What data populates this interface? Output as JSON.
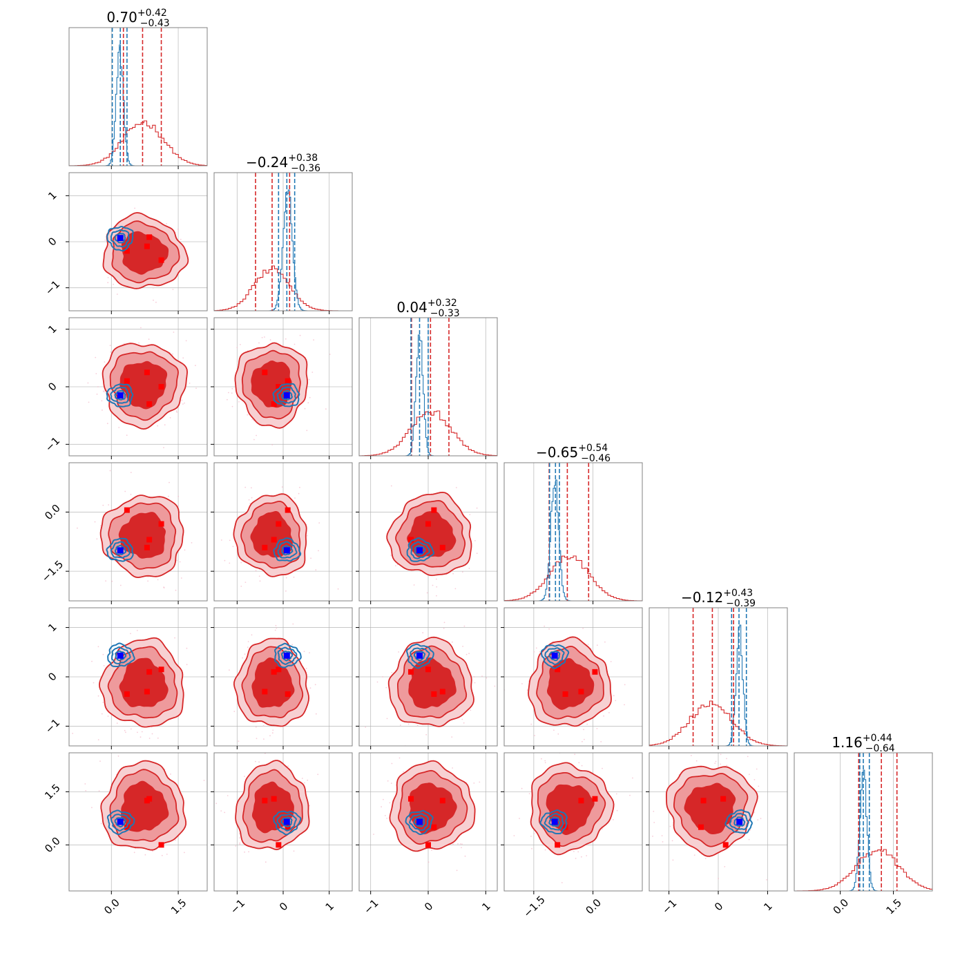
{
  "chart_data": {
    "type": "corner",
    "dimensions": 6,
    "grid": true,
    "colors": {
      "red": "#d62728",
      "blue": "#1f77b4",
      "marker_red": "#ff0000",
      "marker_blue": "#0000ff",
      "scatter": "#f4b6c8"
    },
    "params": [
      {
        "title_main": "0.70",
        "title_sup": "+0.42",
        "title_sub": "−0.43",
        "range": [
          -0.95,
          2.15
        ],
        "ticks": [
          0.0,
          1.5
        ],
        "ticklabels": [
          "0.0",
          "1.5"
        ],
        "red_quantiles": [
          0.27,
          0.7,
          1.12
        ],
        "blue_quantiles": [
          0.02,
          0.2,
          0.35
        ],
        "red_mean": 0.72,
        "red_sd": 0.45,
        "blue_mean": 0.19,
        "blue_sd": 0.08,
        "red_points": [
          0.35,
          0.8,
          0.85,
          1.12
        ],
        "blue_point": 0.2
      },
      {
        "title_main": "−0.24",
        "title_sup": "+0.38",
        "title_sub": "−0.36",
        "range": [
          -1.5,
          1.5
        ],
        "ticks": [
          -1,
          0,
          1
        ],
        "ticklabels": [
          "−1",
          "0",
          "1"
        ],
        "red_quantiles": [
          -0.6,
          -0.24,
          0.14
        ],
        "blue_quantiles": [
          -0.1,
          0.08,
          0.25
        ],
        "red_mean": -0.24,
        "red_sd": 0.38,
        "blue_mean": 0.1,
        "blue_sd": 0.1,
        "red_points": [
          -0.4,
          -0.2,
          -0.1,
          0.1
        ],
        "blue_point": 0.08
      },
      {
        "title_main": "0.04",
        "title_sup": "+0.32",
        "title_sub": "−0.33",
        "range": [
          -1.2,
          1.2
        ],
        "ticks": [
          -1,
          0,
          1
        ],
        "ticklabels": [
          "−1",
          "0",
          "1"
        ],
        "red_quantiles": [
          -0.29,
          0.04,
          0.36
        ],
        "blue_quantiles": [
          -0.3,
          -0.15,
          0.0
        ],
        "red_mean": 0.05,
        "red_sd": 0.35,
        "blue_mean": -0.15,
        "blue_sd": 0.06,
        "red_points": [
          -0.3,
          0.0,
          0.1,
          0.25
        ],
        "blue_point": -0.15
      },
      {
        "title_main": "−0.65",
        "title_sup": "+0.54",
        "title_sub": "−0.46",
        "range": [
          -2.25,
          1.25
        ],
        "ticks": [
          -1.5,
          0.0
        ],
        "ticklabels": [
          "−1.5",
          "0.0"
        ],
        "red_quantiles": [
          -1.11,
          -0.65,
          -0.11
        ],
        "blue_quantiles": [
          -1.1,
          -0.95,
          -0.85
        ],
        "red_mean": -0.6,
        "red_sd": 0.5,
        "blue_mean": -0.97,
        "blue_sd": 0.1,
        "red_points": [
          -0.9,
          -0.7,
          -0.3,
          0.05
        ],
        "blue_point": -0.97
      },
      {
        "title_main": "−0.12",
        "title_sup": "+0.43",
        "title_sub": "−0.39",
        "range": [
          -1.4,
          1.4
        ],
        "ticks": [
          -1,
          0,
          1
        ],
        "ticklabels": [
          "−1",
          "0",
          "1"
        ],
        "red_quantiles": [
          -0.51,
          -0.12,
          0.31
        ],
        "blue_quantiles": [
          0.27,
          0.42,
          0.57
        ],
        "red_mean": -0.15,
        "red_sd": 0.43,
        "blue_mean": 0.43,
        "blue_sd": 0.07,
        "red_points": [
          -0.35,
          -0.3,
          0.1,
          0.15
        ],
        "blue_point": 0.43
      },
      {
        "title_main": "1.16",
        "title_sup": "+0.44",
        "title_sub": "−0.64",
        "range": [
          -1.3,
          2.6
        ],
        "ticks": [
          0.0,
          1.5
        ],
        "ticklabels": [
          "0.0",
          "1.5"
        ],
        "red_quantiles": [
          0.52,
          1.16,
          1.6
        ],
        "blue_quantiles": [
          0.55,
          0.65,
          0.82
        ],
        "red_mean": 1.05,
        "red_sd": 0.6,
        "blue_mean": 0.65,
        "blue_sd": 0.1,
        "red_points": [
          0.0,
          0.5,
          1.25,
          1.3
        ],
        "blue_point": 0.65
      }
    ]
  }
}
